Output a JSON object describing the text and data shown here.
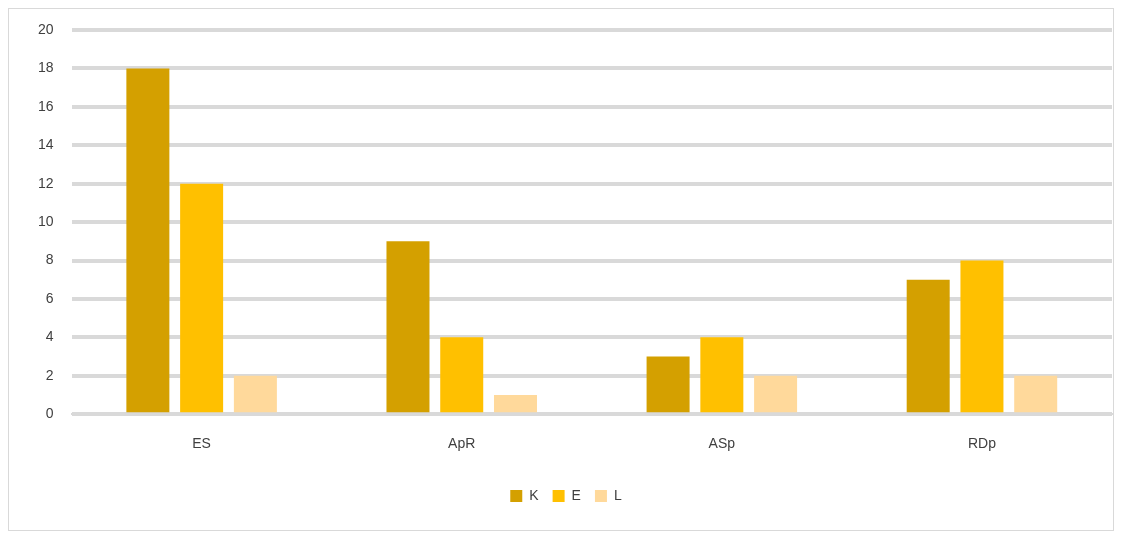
{
  "chart_data": {
    "type": "bar",
    "categories": [
      "ES",
      "ApR",
      "ASp",
      "RDp"
    ],
    "series": [
      {
        "name": "K",
        "color": "#d4a000",
        "values": [
          18,
          9,
          3,
          7
        ]
      },
      {
        "name": "E",
        "color": "#ffc000",
        "values": [
          12,
          4,
          4,
          8
        ]
      },
      {
        "name": "L",
        "color": "#ffd99b",
        "values": [
          2,
          1,
          2,
          2
        ]
      }
    ],
    "ylim": [
      0,
      20
    ],
    "yticks": [
      0,
      2,
      4,
      6,
      8,
      10,
      12,
      14,
      16,
      18,
      20
    ],
    "grid": "y",
    "legend": "bottom"
  }
}
